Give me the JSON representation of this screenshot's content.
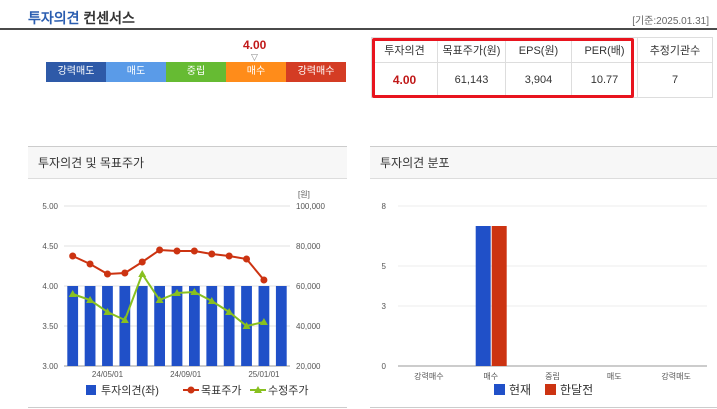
{
  "header": {
    "title_main": "투자의견",
    "title_sub": "컨센서스",
    "date": "[기준:2025.01.31]"
  },
  "opinion_scale": {
    "value": "4.00",
    "position_fraction": 0.7,
    "segments": [
      {
        "label": "강력매도",
        "color": "#2e5aa8"
      },
      {
        "label": "매도",
        "color": "#5a9be8"
      },
      {
        "label": "중립",
        "color": "#66bb33"
      },
      {
        "label": "매수",
        "color": "#ff8c1a"
      },
      {
        "label": "강력매수",
        "color": "#d43c24"
      }
    ]
  },
  "summary": {
    "headers": [
      "투자의견",
      "목표주가(원)",
      "EPS(원)",
      "PER(배)",
      "추정기관수"
    ],
    "values": [
      "4.00",
      "61,143",
      "3,904",
      "10.77",
      "7"
    ]
  },
  "left_panel": {
    "title": "투자의견 및 목표주가"
  },
  "right_panel": {
    "title": "투자의견 분포"
  },
  "chart_data": [
    {
      "type": "bar",
      "title": "투자의견 및 목표주가",
      "y_left_unit": "",
      "y_right_unit": "[원]",
      "ylim_left": [
        3.0,
        5.0
      ],
      "ylim_right": [
        20000,
        100000
      ],
      "yticks_left": [
        "5.00",
        "4.50",
        "4.00",
        "3.50",
        "3.00"
      ],
      "yticks_right": [
        "100,000",
        "80,000",
        "60,000",
        "40,000",
        "20,000"
      ],
      "x_tick_labels": [
        "24/05/01",
        "24/09/01",
        "25/01/01"
      ],
      "grid": true,
      "legend_position": "bottom",
      "series": [
        {
          "name": "투자의견(좌)",
          "color": "#2050c8",
          "axis": "left",
          "kind": "bar",
          "values": [
            4.0,
            4.0,
            4.0,
            4.0,
            4.0,
            4.0,
            4.0,
            4.0,
            4.0,
            4.0,
            4.0,
            4.0,
            4.0
          ]
        },
        {
          "name": "목표주가",
          "color": "#cc3311",
          "axis": "right",
          "kind": "line",
          "values": [
            75000,
            71000,
            66000,
            66500,
            72000,
            78000,
            77500,
            77500,
            76000,
            75000,
            73500,
            63000
          ]
        },
        {
          "name": "수정주가",
          "color": "#88c020",
          "axis": "right",
          "kind": "line",
          "values": [
            56000,
            53000,
            47000,
            43000,
            66000,
            53000,
            56500,
            57000,
            52500,
            47000,
            40000,
            42000
          ]
        }
      ]
    },
    {
      "type": "bar",
      "title": "투자의견 분포",
      "categories": [
        "강력매수",
        "매수",
        "중립",
        "매도",
        "강력매도"
      ],
      "ylim": [
        0,
        8
      ],
      "yticks": [
        "8",
        "5",
        "3",
        "0"
      ],
      "legend_position": "bottom",
      "series": [
        {
          "name": "현재",
          "color": "#2050c8",
          "values": [
            0,
            7,
            0,
            0,
            0
          ]
        },
        {
          "name": "한달전",
          "color": "#cc3311",
          "values": [
            0,
            7,
            0,
            0,
            0
          ]
        }
      ]
    }
  ]
}
